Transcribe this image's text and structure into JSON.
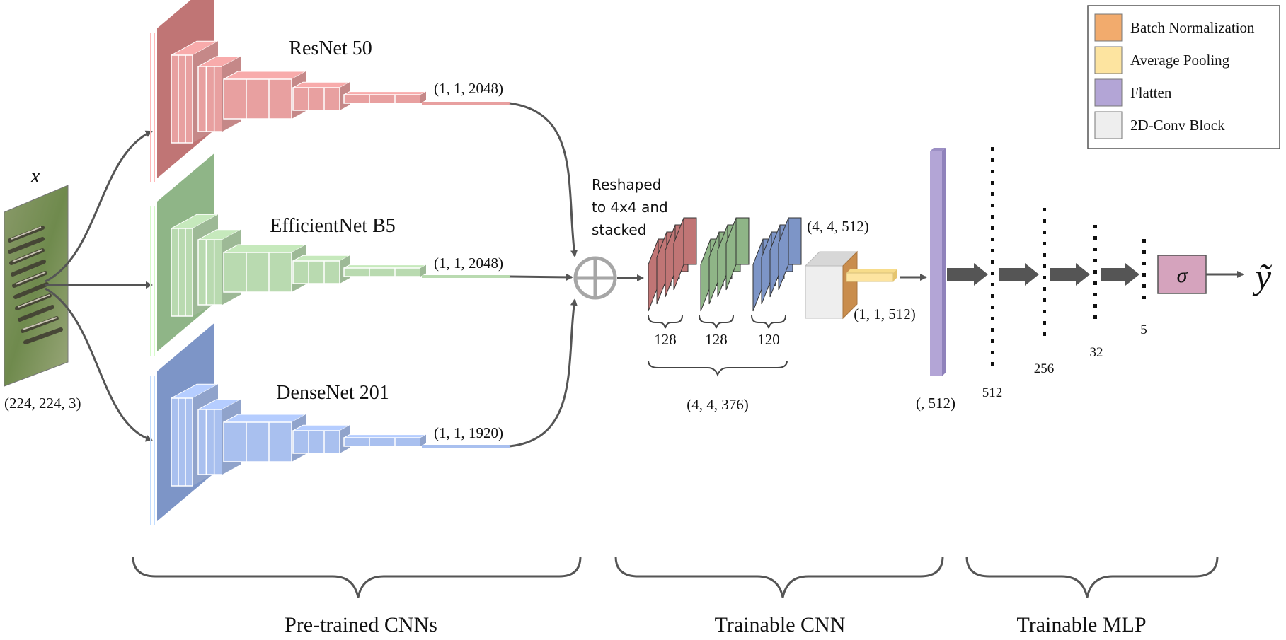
{
  "input": {
    "symbol": "x",
    "shape": "(224, 224, 3)"
  },
  "backbones": [
    {
      "name": "ResNet 50",
      "output": "(1, 1, 2048)",
      "fill": "#e8a0a0",
      "dark": "#c07575"
    },
    {
      "name": "EfficientNet B5",
      "output": "(1, 1, 2048)",
      "fill": "#b9dab0",
      "dark": "#8fb587"
    },
    {
      "name": "DenseNet 201",
      "output": "(1, 1, 1920)",
      "fill": "#a9c0ef",
      "dark": "#7d95c7"
    }
  ],
  "merge": {
    "note_lines": [
      "Reshaped",
      "to 4x4 and",
      "stacked"
    ]
  },
  "stack": {
    "groups": [
      "128",
      "128",
      "120"
    ],
    "total": "(4, 4, 376)"
  },
  "conv": {
    "input": "(4, 4, 512)",
    "output": "(1, 1, 512)"
  },
  "flatten": {
    "label": "(, 512)"
  },
  "mlp": {
    "layers": [
      "512",
      "256",
      "32",
      "5"
    ],
    "activation": "σ",
    "output_symbol": "ỹ"
  },
  "legend": [
    {
      "label": "Batch Normalization",
      "color": "#f2ab6d"
    },
    {
      "label": "Average Pooling",
      "color": "#fde4a0"
    },
    {
      "label": "Flatten",
      "color": "#b3a5d6"
    },
    {
      "label": "2D-Conv Block",
      "color": "#eeeeee"
    }
  ],
  "sections": [
    "Pre-trained CNNs",
    "Trainable CNN",
    "Trainable MLP"
  ]
}
